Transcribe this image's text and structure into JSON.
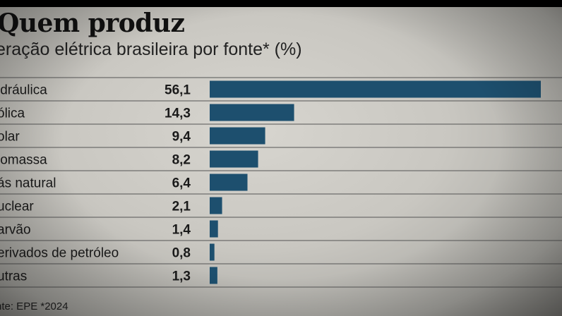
{
  "chart_data": {
    "type": "bar",
    "title": "Quem produz",
    "subtitle": "Geração elétrica brasileira por fonte* (%)",
    "categories": [
      "Hidráulica",
      "Eólica",
      "Solar",
      "Biomassa",
      "Gás natural",
      "Nuclear",
      "Carvão",
      "Derivados de petróleo",
      "Outras"
    ],
    "category_labels_visible": [
      "idráulica",
      "ólica",
      "olar",
      "iomassa",
      "ás natural",
      "uclear",
      "arvão",
      "erivados de petróleo",
      "utras"
    ],
    "values": [
      56.1,
      14.3,
      9.4,
      8.2,
      6.4,
      2.1,
      1.4,
      0.8,
      1.3
    ],
    "value_labels": [
      "56,1",
      "14,3",
      "9,4",
      "8,2",
      "6,4",
      "2,1",
      "1,4",
      "0,8",
      "1,3"
    ],
    "xlim": [
      0,
      56.1
    ],
    "bar_color": "#1d4f6e",
    "grid": false,
    "orientation": "horizontal"
  },
  "header": {
    "title": "Quem produz",
    "subtitle": "eração elétrica brasileira por fonte* (%)"
  },
  "footer": {
    "source": "nte: EPE *2024"
  }
}
